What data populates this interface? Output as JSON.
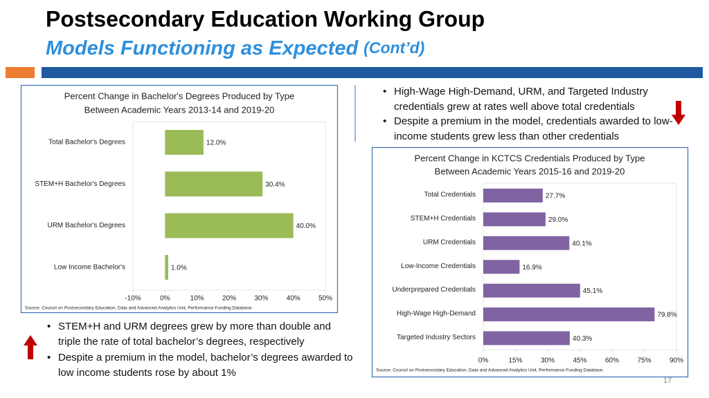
{
  "header": {
    "title": "Postsecondary Education Working Group",
    "subtitle": "Models Functioning as Expected",
    "subtitle_note": "(Cont’d)"
  },
  "bullets_top": [
    "High-Wage High-Demand, URM, and Targeted Industry credentials grew at rates well above total credentials",
    "Despite a premium in the model, credentials awarded to low-income students grew less than other credentials"
  ],
  "bullets_bottom": [
    "STEM+H and URM degrees grew by more than double and triple the rate of total bachelor’s degrees, respectively",
    "Despite a premium in the model, bachelor’s degrees awarded to low income students rose by about 1%"
  ],
  "page_number": "17",
  "chart_data": [
    {
      "type": "hbar",
      "title": "Percent Change in Bachelor's Degrees Produced by Type",
      "subtitle": "Between Academic Years 2013-14 and 2019-20",
      "categories": [
        "Total Bachelor's Degrees",
        "STEM+H Bachelor's Degrees",
        "URM Bachelor's Degrees",
        "Low Income Bachelor's"
      ],
      "values": [
        12.0,
        30.4,
        40.0,
        1.0
      ],
      "value_labels": [
        "12.0%",
        "30.4%",
        "40.0%",
        "1.0%"
      ],
      "color": "#9bbb59",
      "xlim": [
        -10,
        50
      ],
      "xticks": [
        {
          "value": -10,
          "label": "-10%"
        },
        {
          "value": 0,
          "label": "0%"
        },
        {
          "value": 10,
          "label": "10%"
        },
        {
          "value": 20,
          "label": "20%"
        },
        {
          "value": 30,
          "label": "30%"
        },
        {
          "value": 40,
          "label": "40%"
        },
        {
          "value": 50,
          "label": "50%"
        }
      ],
      "source": "Source:  Council on Postsecondary Education, Data and Advanced Analytics Unit, Performance Funding Database."
    },
    {
      "type": "hbar",
      "title": "Percent Change in KCTCS Credentials Produced by Type",
      "subtitle": "Between Academic Years 2015-16 and 2019-20",
      "categories": [
        "Total Credentials",
        "STEM+H Credentials",
        "URM Credentials",
        "Low-Income Credentials",
        "Underprepared Credentials",
        "High-Wage High-Demand",
        "Targeted Industry Sectors"
      ],
      "values": [
        27.7,
        29.0,
        40.1,
        16.9,
        45.1,
        79.8,
        40.3
      ],
      "value_labels": [
        "27.7%",
        "29.0%",
        "40.1%",
        "16.9%",
        "45.1%",
        "79.8%",
        "40.3%"
      ],
      "color": "#8064a2",
      "xlim": [
        0,
        90
      ],
      "xticks": [
        {
          "value": 0,
          "label": "0%"
        },
        {
          "value": 15,
          "label": "15%"
        },
        {
          "value": 30,
          "label": "30%"
        },
        {
          "value": 45,
          "label": "45%"
        },
        {
          "value": 60,
          "label": "60%"
        },
        {
          "value": 75,
          "label": "75%"
        },
        {
          "value": 90,
          "label": "90%"
        }
      ],
      "source": "Source:  Council on Postsecondary Education, Data and Advanced Analytics Unit, Performance Funding Database."
    }
  ]
}
